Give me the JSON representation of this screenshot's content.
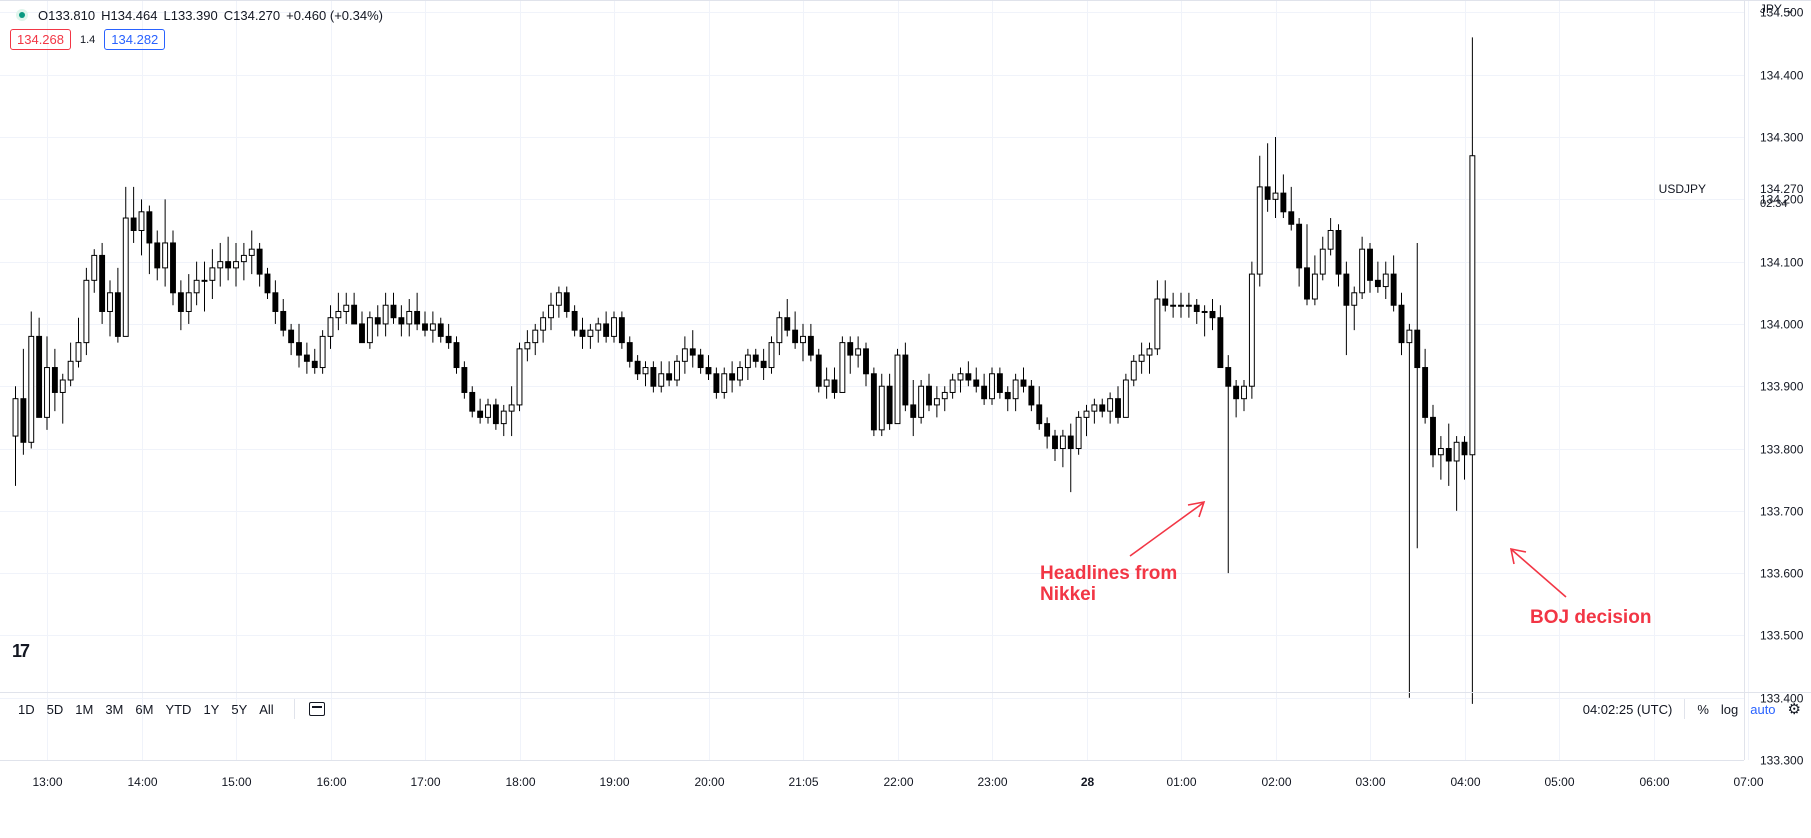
{
  "header": {
    "open": "O133.810",
    "high": "H134.464",
    "low": "L133.390",
    "close": "C134.270",
    "change": "+0.460 (+0.34%)",
    "bid": "134.268",
    "spread": "1.4",
    "ask": "134.282",
    "currency": "JPY"
  },
  "price_tag": {
    "symbol": "USDJPY",
    "price": "134.270",
    "countdown": "02:34"
  },
  "logo": "17",
  "bottom": {
    "ranges": [
      "1D",
      "5D",
      "1M",
      "3M",
      "6M",
      "YTD",
      "1Y",
      "5Y",
      "All"
    ],
    "clock": "04:02:25 (UTC)",
    "percent": "%",
    "log": "log",
    "auto": "auto"
  },
  "colors": {
    "up_body": "#ffffff",
    "down_body": "#000000",
    "wick": "#000000",
    "annotation": "#f23645",
    "grid": "#f0f3fa"
  },
  "chart_data": {
    "type": "candlestick",
    "symbol": "USDJPY",
    "ylim": [
      133.3,
      134.52
    ],
    "y_ticks": [
      134.5,
      134.4,
      134.3,
      134.2,
      134.1,
      134.0,
      133.9,
      133.8,
      133.7,
      133.6,
      133.5,
      133.4,
      133.3
    ],
    "y_tick_labels": [
      "134.500",
      "134.400",
      "134.300",
      "134.200",
      "134.100",
      "134.000",
      "133.900",
      "133.800",
      "133.700",
      "133.600",
      "133.500",
      "133.400",
      "133.300"
    ],
    "x_tick_labels": [
      "13:00",
      "14:00",
      "15:00",
      "16:00",
      "17:00",
      "18:00",
      "19:00",
      "20:00",
      "21:05",
      "22:00",
      "23:00",
      "28",
      "01:00",
      "02:00",
      "03:00",
      "04:00",
      "05:00",
      "06:00",
      "07:00"
    ],
    "bar_interval_minutes": 5,
    "first_bar_time": "12:40",
    "candles": [
      [
        133.82,
        133.9,
        133.74,
        133.88
      ],
      [
        133.88,
        133.96,
        133.79,
        133.81
      ],
      [
        133.81,
        134.02,
        133.8,
        133.98
      ],
      [
        133.98,
        134.01,
        133.86,
        133.85
      ],
      [
        133.85,
        133.98,
        133.83,
        133.93
      ],
      [
        133.93,
        133.96,
        133.86,
        133.89
      ],
      [
        133.89,
        133.92,
        133.84,
        133.91
      ],
      [
        133.91,
        133.97,
        133.9,
        133.94
      ],
      [
        133.94,
        134.01,
        133.93,
        133.97
      ],
      [
        133.97,
        134.09,
        133.95,
        134.07
      ],
      [
        134.07,
        134.12,
        134.05,
        134.11
      ],
      [
        134.11,
        134.13,
        134.0,
        134.02
      ],
      [
        134.02,
        134.07,
        133.98,
        134.05
      ],
      [
        134.05,
        134.09,
        133.97,
        133.98
      ],
      [
        133.98,
        134.22,
        133.98,
        134.17
      ],
      [
        134.17,
        134.22,
        134.13,
        134.15
      ],
      [
        134.15,
        134.2,
        134.11,
        134.18
      ],
      [
        134.18,
        134.19,
        134.08,
        134.13
      ],
      [
        134.13,
        134.15,
        134.07,
        134.09
      ],
      [
        134.09,
        134.2,
        134.06,
        134.13
      ],
      [
        134.13,
        134.15,
        134.03,
        134.05
      ],
      [
        134.05,
        134.07,
        133.99,
        134.02
      ],
      [
        134.02,
        134.08,
        134.0,
        134.05
      ],
      [
        134.05,
        134.1,
        134.03,
        134.07
      ],
      [
        134.07,
        134.1,
        134.02,
        134.07
      ],
      [
        134.07,
        134.12,
        134.04,
        134.09
      ],
      [
        134.09,
        134.13,
        134.06,
        134.1
      ],
      [
        134.1,
        134.14,
        134.07,
        134.09
      ],
      [
        134.09,
        134.13,
        134.06,
        134.1
      ],
      [
        134.1,
        134.13,
        134.07,
        134.11
      ],
      [
        134.11,
        134.15,
        134.08,
        134.12
      ],
      [
        134.12,
        134.13,
        134.06,
        134.08
      ],
      [
        134.08,
        134.09,
        134.04,
        134.05
      ],
      [
        134.05,
        134.07,
        134.0,
        134.02
      ],
      [
        134.02,
        134.04,
        133.98,
        133.99
      ],
      [
        133.99,
        134.0,
        133.95,
        133.97
      ],
      [
        133.97,
        134.0,
        133.93,
        133.95
      ],
      [
        133.95,
        133.97,
        133.92,
        133.94
      ],
      [
        133.94,
        133.96,
        133.92,
        133.93
      ],
      [
        133.93,
        133.99,
        133.92,
        133.98
      ],
      [
        133.98,
        134.03,
        133.96,
        134.01
      ],
      [
        134.01,
        134.05,
        133.99,
        134.02
      ],
      [
        134.02,
        134.05,
        134.0,
        134.03
      ],
      [
        134.03,
        134.05,
        134.0,
        134.0
      ],
      [
        134.0,
        134.02,
        133.97,
        133.97
      ],
      [
        133.97,
        134.02,
        133.96,
        134.01
      ],
      [
        134.01,
        134.03,
        133.98,
        134.0
      ],
      [
        134.0,
        134.05,
        133.98,
        134.03
      ],
      [
        134.03,
        134.05,
        134.0,
        134.01
      ],
      [
        134.01,
        134.03,
        133.98,
        134.0
      ],
      [
        134.0,
        134.04,
        133.98,
        134.02
      ],
      [
        134.02,
        134.05,
        133.99,
        134.0
      ],
      [
        134.0,
        134.02,
        133.98,
        133.99
      ],
      [
        133.99,
        134.02,
        133.97,
        134.0
      ],
      [
        134.0,
        134.01,
        133.97,
        133.98
      ],
      [
        133.98,
        134.0,
        133.96,
        133.97
      ],
      [
        133.97,
        133.98,
        133.92,
        133.93
      ],
      [
        133.93,
        133.94,
        133.88,
        133.89
      ],
      [
        133.89,
        133.9,
        133.85,
        133.86
      ],
      [
        133.86,
        133.88,
        133.84,
        133.85
      ],
      [
        133.85,
        133.88,
        133.84,
        133.87
      ],
      [
        133.87,
        133.88,
        133.83,
        133.84
      ],
      [
        133.84,
        133.87,
        133.82,
        133.86
      ],
      [
        133.86,
        133.9,
        133.82,
        133.87
      ],
      [
        133.87,
        133.97,
        133.86,
        133.96
      ],
      [
        133.96,
        133.99,
        133.94,
        133.97
      ],
      [
        133.97,
        134.0,
        133.95,
        133.99
      ],
      [
        133.99,
        134.02,
        133.97,
        134.01
      ],
      [
        134.01,
        134.05,
        133.99,
        134.03
      ],
      [
        134.03,
        134.06,
        134.01,
        134.05
      ],
      [
        134.05,
        134.06,
        134.01,
        134.02
      ],
      [
        134.02,
        134.03,
        133.98,
        133.99
      ],
      [
        133.99,
        134.01,
        133.96,
        133.98
      ],
      [
        133.98,
        134.0,
        133.96,
        133.99
      ],
      [
        133.99,
        134.01,
        133.97,
        134.0
      ],
      [
        134.0,
        134.02,
        133.97,
        133.98
      ],
      [
        133.98,
        134.02,
        133.97,
        134.01
      ],
      [
        134.01,
        134.02,
        133.96,
        133.97
      ],
      [
        133.97,
        133.98,
        133.93,
        133.94
      ],
      [
        133.94,
        133.95,
        133.91,
        133.92
      ],
      [
        133.92,
        133.94,
        133.9,
        133.93
      ],
      [
        133.93,
        133.94,
        133.89,
        133.9
      ],
      [
        133.9,
        133.94,
        133.89,
        133.92
      ],
      [
        133.92,
        133.94,
        133.9,
        133.91
      ],
      [
        133.91,
        133.95,
        133.9,
        133.94
      ],
      [
        133.94,
        133.98,
        133.92,
        133.96
      ],
      [
        133.96,
        133.99,
        133.93,
        133.95
      ],
      [
        133.95,
        133.96,
        133.92,
        133.93
      ],
      [
        133.93,
        133.95,
        133.91,
        133.92
      ],
      [
        133.92,
        133.93,
        133.88,
        133.89
      ],
      [
        133.89,
        133.93,
        133.88,
        133.92
      ],
      [
        133.92,
        133.94,
        133.89,
        133.91
      ],
      [
        133.91,
        133.94,
        133.9,
        133.93
      ],
      [
        133.93,
        133.96,
        133.91,
        133.95
      ],
      [
        133.95,
        133.96,
        133.93,
        133.94
      ],
      [
        133.94,
        133.96,
        133.91,
        133.93
      ],
      [
        133.93,
        133.98,
        133.92,
        133.97
      ],
      [
        133.97,
        134.02,
        133.95,
        134.01
      ],
      [
        134.01,
        134.04,
        133.98,
        133.99
      ],
      [
        133.99,
        134.02,
        133.96,
        133.97
      ],
      [
        133.97,
        134.0,
        133.94,
        133.98
      ],
      [
        133.98,
        134.0,
        133.94,
        133.95
      ],
      [
        133.95,
        133.96,
        133.89,
        133.9
      ],
      [
        133.9,
        133.93,
        133.88,
        133.91
      ],
      [
        133.91,
        133.93,
        133.88,
        133.89
      ],
      [
        133.89,
        133.98,
        133.89,
        133.97
      ],
      [
        133.97,
        133.98,
        133.92,
        133.95
      ],
      [
        133.95,
        133.98,
        133.93,
        133.96
      ],
      [
        133.96,
        133.97,
        133.9,
        133.92
      ],
      [
        133.92,
        133.93,
        133.82,
        133.83
      ],
      [
        133.83,
        133.92,
        133.82,
        133.9
      ],
      [
        133.9,
        133.92,
        133.83,
        133.84
      ],
      [
        133.84,
        133.96,
        133.84,
        133.95
      ],
      [
        133.95,
        133.97,
        133.86,
        133.87
      ],
      [
        133.87,
        133.91,
        133.82,
        133.85
      ],
      [
        133.85,
        133.91,
        133.84,
        133.9
      ],
      [
        133.9,
        133.92,
        133.86,
        133.87
      ],
      [
        133.87,
        133.9,
        133.85,
        133.88
      ],
      [
        133.88,
        133.9,
        133.86,
        133.89
      ],
      [
        133.89,
        133.92,
        133.88,
        133.91
      ],
      [
        133.91,
        133.93,
        133.89,
        133.92
      ],
      [
        133.92,
        133.94,
        133.9,
        133.91
      ],
      [
        133.91,
        133.93,
        133.89,
        133.9
      ],
      [
        133.9,
        133.92,
        133.87,
        133.88
      ],
      [
        133.88,
        133.93,
        133.87,
        133.92
      ],
      [
        133.92,
        133.93,
        133.88,
        133.89
      ],
      [
        133.89,
        133.9,
        133.86,
        133.88
      ],
      [
        133.88,
        133.92,
        133.86,
        133.91
      ],
      [
        133.91,
        133.93,
        133.89,
        133.9
      ],
      [
        133.9,
        133.91,
        133.86,
        133.87
      ],
      [
        133.87,
        133.9,
        133.83,
        133.84
      ],
      [
        133.84,
        133.85,
        133.8,
        133.82
      ],
      [
        133.82,
        133.83,
        133.78,
        133.8
      ],
      [
        133.8,
        133.83,
        133.77,
        133.82
      ],
      [
        133.82,
        133.84,
        133.73,
        133.8
      ],
      [
        133.8,
        133.86,
        133.79,
        133.85
      ],
      [
        133.85,
        133.87,
        133.82,
        133.86
      ],
      [
        133.86,
        133.88,
        133.84,
        133.87
      ],
      [
        133.87,
        133.88,
        133.85,
        133.86
      ],
      [
        133.86,
        133.89,
        133.84,
        133.88
      ],
      [
        133.88,
        133.9,
        133.84,
        133.85
      ],
      [
        133.85,
        133.92,
        133.85,
        133.91
      ],
      [
        133.91,
        133.95,
        133.9,
        133.94
      ],
      [
        133.94,
        133.97,
        133.92,
        133.95
      ],
      [
        133.95,
        133.97,
        133.92,
        133.96
      ],
      [
        133.96,
        134.07,
        133.95,
        134.04
      ],
      [
        134.04,
        134.07,
        134.02,
        134.03
      ],
      [
        134.03,
        134.05,
        134.01,
        134.03
      ],
      [
        134.03,
        134.05,
        134.01,
        134.03
      ],
      [
        134.03,
        134.05,
        134.01,
        134.03
      ],
      [
        134.03,
        134.04,
        134.0,
        134.02
      ],
      [
        134.02,
        134.03,
        133.98,
        134.02
      ],
      [
        134.02,
        134.04,
        133.99,
        134.01
      ],
      [
        134.01,
        134.03,
        133.93,
        133.93
      ],
      [
        133.93,
        133.95,
        133.6,
        133.9
      ],
      [
        133.9,
        133.91,
        133.85,
        133.88
      ],
      [
        133.88,
        133.91,
        133.86,
        133.9
      ],
      [
        133.9,
        134.1,
        133.88,
        134.08
      ],
      [
        134.08,
        134.27,
        134.06,
        134.22
      ],
      [
        134.22,
        134.29,
        134.18,
        134.2
      ],
      [
        134.2,
        134.3,
        134.17,
        134.21
      ],
      [
        134.21,
        134.24,
        134.17,
        134.18
      ],
      [
        134.18,
        134.22,
        134.15,
        134.16
      ],
      [
        134.16,
        134.17,
        134.06,
        134.09
      ],
      [
        134.09,
        134.16,
        134.03,
        134.04
      ],
      [
        134.04,
        134.11,
        134.03,
        134.08
      ],
      [
        134.08,
        134.14,
        134.07,
        134.12
      ],
      [
        134.12,
        134.17,
        134.11,
        134.15
      ],
      [
        134.15,
        134.16,
        134.06,
        134.08
      ],
      [
        134.08,
        134.1,
        133.95,
        134.03
      ],
      [
        134.03,
        134.06,
        133.99,
        134.05
      ],
      [
        134.05,
        134.14,
        134.04,
        134.12
      ],
      [
        134.12,
        134.13,
        134.05,
        134.07
      ],
      [
        134.07,
        134.1,
        134.05,
        134.06
      ],
      [
        134.06,
        134.1,
        134.04,
        134.08
      ],
      [
        134.08,
        134.11,
        134.02,
        134.03
      ],
      [
        134.03,
        134.05,
        133.95,
        133.97
      ],
      [
        133.97,
        134.0,
        133.4,
        133.99
      ],
      [
        133.99,
        134.13,
        133.64,
        133.93
      ],
      [
        133.93,
        133.96,
        133.84,
        133.85
      ],
      [
        133.85,
        133.87,
        133.77,
        133.79
      ],
      [
        133.79,
        133.82,
        133.75,
        133.8
      ],
      [
        133.8,
        133.84,
        133.74,
        133.78
      ],
      [
        133.78,
        133.82,
        133.7,
        133.81
      ],
      [
        133.81,
        133.82,
        133.75,
        133.79
      ],
      [
        133.79,
        134.46,
        133.39,
        134.27
      ]
    ]
  },
  "annotations": [
    {
      "lines": [
        "Headlines from",
        "Nikkei"
      ]
    },
    {
      "lines": [
        "BOJ decision"
      ]
    }
  ]
}
